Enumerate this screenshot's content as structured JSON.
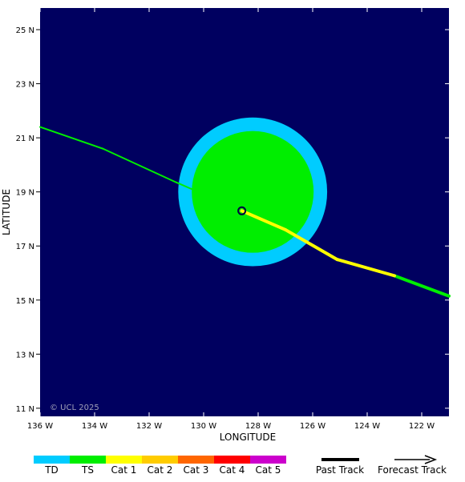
{
  "map": {
    "type": "tropical-cyclone-track",
    "lon_range": [
      -136,
      -121
    ],
    "lat_range": [
      10.7,
      25.8
    ],
    "background_color": "#000060",
    "x_ticks": [
      {
        "value": -136,
        "label": "136 W"
      },
      {
        "value": -134,
        "label": "134 W"
      },
      {
        "value": -132,
        "label": "132 W"
      },
      {
        "value": -130,
        "label": "130 W"
      },
      {
        "value": -128,
        "label": "128 W"
      },
      {
        "value": -126,
        "label": "126 W"
      },
      {
        "value": -124,
        "label": "124 W"
      },
      {
        "value": -122,
        "label": "122 W"
      }
    ],
    "y_ticks": [
      {
        "value": 11,
        "label": "11 N"
      },
      {
        "value": 13,
        "label": "13 N"
      },
      {
        "value": 15,
        "label": "15 N"
      },
      {
        "value": 17,
        "label": "17 N"
      },
      {
        "value": 19,
        "label": "19 N"
      },
      {
        "value": 21,
        "label": "21 N"
      },
      {
        "value": 23,
        "label": "23 N"
      },
      {
        "value": 25,
        "label": "25 N"
      }
    ],
    "xlabel": "LONGITUDE",
    "ylabel": "LATITUDE",
    "copyright": "© UCL 2025"
  },
  "storm": {
    "current_position": {
      "lon": -128.6,
      "lat": 18.3
    },
    "wind_fields": {
      "center": {
        "lon": -128.2,
        "lat": 19.0
      },
      "td_radius_deg": 2.75,
      "ts_radius_deg": 2.25,
      "td_color": "#00ccff",
      "ts_color": "#00ee00"
    },
    "past_track": [
      {
        "lon": -121.0,
        "lat": 15.15,
        "category": "TS"
      },
      {
        "lon": -123.0,
        "lat": 15.9,
        "category": "TS"
      },
      {
        "lon": -125.1,
        "lat": 16.5,
        "category": "Cat 1"
      },
      {
        "lon": -127.0,
        "lat": 17.6,
        "category": "Cat 1"
      },
      {
        "lon": -128.6,
        "lat": 18.3,
        "category": "Cat 1"
      }
    ],
    "forecast_track": [
      {
        "lon": -128.6,
        "lat": 18.3,
        "category": "TS"
      },
      {
        "lon": -131.0,
        "lat": 19.35,
        "category": "TS"
      },
      {
        "lon": -133.7,
        "lat": 20.6,
        "category": "TS"
      },
      {
        "lon": -136.0,
        "lat": 21.4,
        "category": "TS"
      }
    ]
  },
  "legend": {
    "scale": [
      {
        "label": "TD",
        "color": "#00ccff"
      },
      {
        "label": "TS",
        "color": "#00ee00"
      },
      {
        "label": "Cat 1",
        "color": "#ffff00"
      },
      {
        "label": "Cat 2",
        "color": "#ffcc00"
      },
      {
        "label": "Cat 3",
        "color": "#ff6600"
      },
      {
        "label": "Cat 4",
        "color": "#ff0000"
      },
      {
        "label": "Cat 5",
        "color": "#cc00cc"
      }
    ],
    "past_track_label": "Past Track",
    "forecast_track_label": "Forecast Track"
  }
}
